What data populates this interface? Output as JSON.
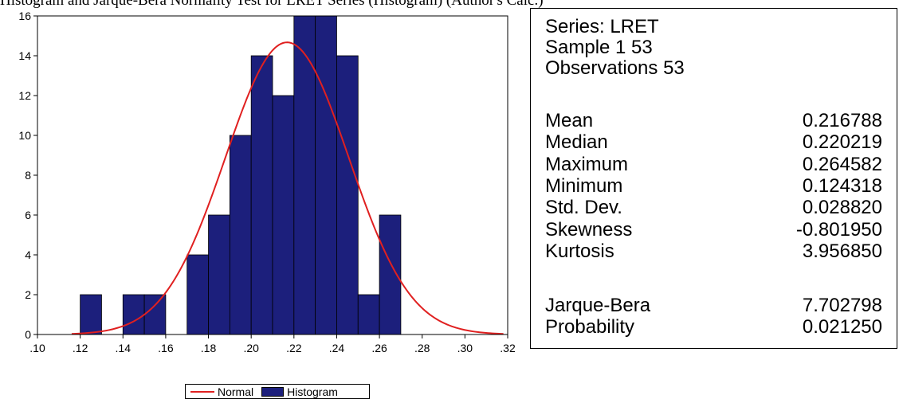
{
  "page_title": "Histogram and Jarque-Bera Normality Test for LRET Series (Histogram) (Author's Calc.)",
  "chart_data": {
    "type": "bar",
    "bin_width": 0.01,
    "bins": [
      {
        "x": 0.12,
        "count": 2
      },
      {
        "x": 0.14,
        "count": 2
      },
      {
        "x": 0.15,
        "count": 2
      },
      {
        "x": 0.17,
        "count": 4
      },
      {
        "x": 0.18,
        "count": 6
      },
      {
        "x": 0.19,
        "count": 10
      },
      {
        "x": 0.2,
        "count": 14
      },
      {
        "x": 0.21,
        "count": 12
      },
      {
        "x": 0.22,
        "count": 16
      },
      {
        "x": 0.23,
        "count": 16
      },
      {
        "x": 0.24,
        "count": 14
      },
      {
        "x": 0.25,
        "count": 2
      },
      {
        "x": 0.26,
        "count": 6
      }
    ],
    "normal_curve": {
      "name": "Normal",
      "mean": 0.216788,
      "std": 0.02882
    },
    "xlim": [
      0.1,
      0.32
    ],
    "ylim": [
      0,
      16
    ],
    "x_ticks": [
      ".10",
      ".12",
      ".14",
      ".16",
      ".18",
      ".20",
      ".22",
      ".24",
      ".26",
      ".28",
      ".30",
      ".32"
    ],
    "y_ticks": [
      "0",
      "2",
      "4",
      "6",
      "8",
      "10",
      "12",
      "14",
      "16"
    ],
    "legend": [
      {
        "name": "Normal",
        "kind": "line",
        "color": "#e02020"
      },
      {
        "name": "Histogram",
        "kind": "bar",
        "color": "#1c1f7c"
      }
    ],
    "legend_position": "bottom",
    "colors": {
      "bar": "#1c1f7c",
      "curve": "#e02020"
    }
  },
  "stats": {
    "series": "Series: LRET",
    "sample": "Sample 1 53",
    "observations": "Observations 53",
    "rows": [
      {
        "label": "Mean",
        "value": "0.216788"
      },
      {
        "label": "Median",
        "value": "0.220219"
      },
      {
        "label": "Maximum",
        "value": "0.264582"
      },
      {
        "label": "Minimum",
        "value": "0.124318"
      },
      {
        "label": "Std. Dev.",
        "value": "0.028820"
      },
      {
        "label": "Skewness",
        "value": "-0.801950"
      },
      {
        "label": "Kurtosis",
        "value": "3.956850"
      }
    ],
    "test_rows": [
      {
        "label": "Jarque-Bera",
        "value": "7.702798"
      },
      {
        "label": "Probability",
        "value": "0.021250"
      }
    ]
  }
}
